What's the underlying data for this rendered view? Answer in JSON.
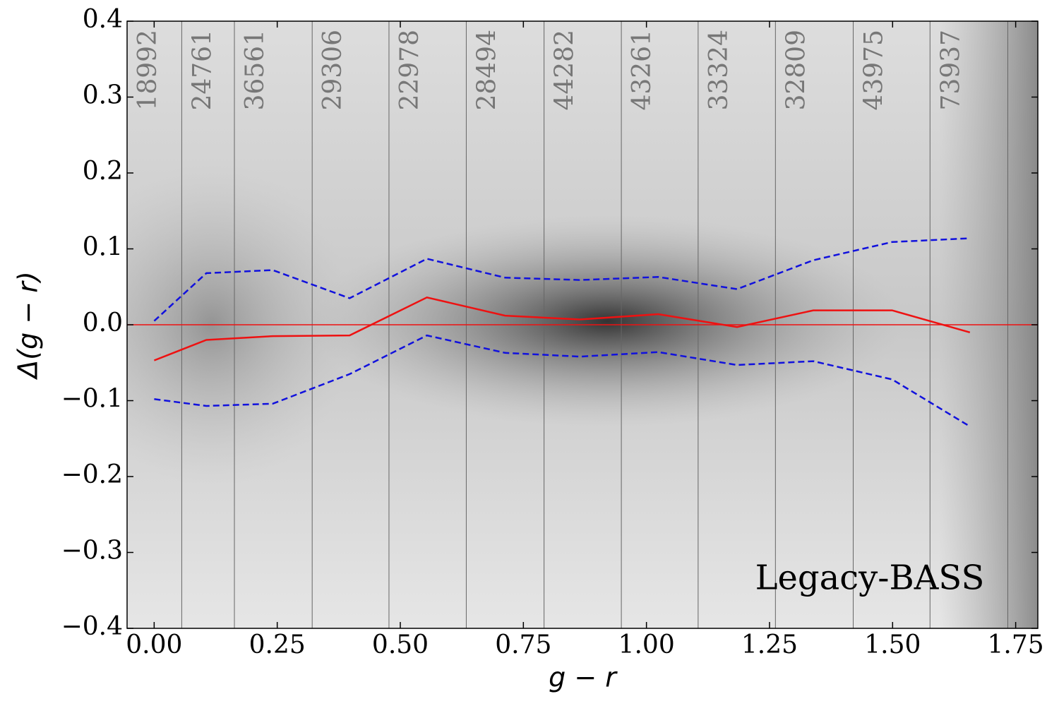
{
  "chart_data": {
    "type": "line",
    "xlabel": "g − r",
    "ylabel": "Δ(g − r)",
    "annotation": "Legacy-BASS",
    "xlim": [
      -0.055,
      1.795
    ],
    "ylim": [
      -0.4,
      0.4
    ],
    "xticks": [
      {
        "value": 0,
        "label": "0.00"
      },
      {
        "value": 0.25,
        "label": "0.25"
      },
      {
        "value": 0.5,
        "label": "0.50"
      },
      {
        "value": 0.75,
        "label": "0.75"
      },
      {
        "value": 1,
        "label": "1.00"
      },
      {
        "value": 1.25,
        "label": "1.25"
      },
      {
        "value": 1.5,
        "label": "1.50"
      },
      {
        "value": 1.75,
        "label": "1.75"
      }
    ],
    "yticks": [
      {
        "value": -0.4,
        "label": "−0.4"
      },
      {
        "value": -0.3,
        "label": "−0.3"
      },
      {
        "value": -0.2,
        "label": "−0.2"
      },
      {
        "value": -0.1,
        "label": "−0.1"
      },
      {
        "value": 0,
        "label": "0.0"
      },
      0.1,
      0.2,
      0.3,
      0.4
    ],
    "x": [
      0.0,
      0.106,
      0.241,
      0.397,
      0.554,
      0.713,
      0.865,
      1.024,
      1.184,
      1.339,
      1.499,
      1.657
    ],
    "series": [
      {
        "color": "#ee1111",
        "dash": "solid",
        "values": [
          -0.047,
          -0.02,
          -0.015,
          -0.014,
          0.036,
          0.012,
          0.007,
          0.014,
          -0.003,
          0.019,
          0.019,
          -0.01
        ]
      },
      {
        "color": "#1111dd",
        "dash": "dashed",
        "values": [
          0.005,
          0.068,
          0.072,
          0.035,
          0.087,
          0.062,
          0.059,
          0.063,
          0.047,
          0.085,
          0.109,
          0.114
        ]
      },
      {
        "color": "#1111dd",
        "dash": "dashed",
        "values": [
          -0.098,
          -0.107,
          -0.104,
          -0.065,
          -0.014,
          -0.037,
          -0.042,
          -0.036,
          -0.053,
          -0.048,
          -0.072,
          -0.134
        ]
      }
    ],
    "reference_line": {
      "value": 0,
      "color": "#ee1111"
    },
    "bin_edges": [
      0.056,
      0.163,
      0.321,
      0.477,
      0.634,
      0.792,
      0.949,
      1.105,
      1.262,
      1.42,
      1.576,
      1.734
    ],
    "bin_counts": [
      18992,
      24761,
      36561,
      29306,
      22978,
      28494,
      44282,
      43261,
      33324,
      32809,
      43975,
      73937
    ]
  }
}
